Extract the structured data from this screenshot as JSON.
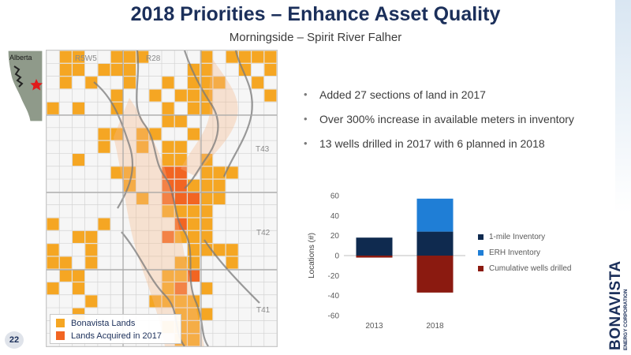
{
  "title": "2018 Priorities – Enhance Asset Quality",
  "subtitle": "Morningside – Spirit River Falher",
  "map": {
    "inset_label": "Alberta",
    "range_labels": [
      "R5W5",
      "R28"
    ],
    "township_labels": [
      "T43",
      "T42",
      "T41"
    ],
    "legend": [
      {
        "label": "Bonavista Lands",
        "color": "#f5a623"
      },
      {
        "label": "Lands Acquired in 2017",
        "color": "#f26522"
      }
    ]
  },
  "bullets": [
    "Added 27 sections of land in 2017",
    "Over 300% increase in available meters in inventory",
    "13 wells drilled in 2017 with 6 planned in 2018"
  ],
  "chart_data": {
    "type": "bar",
    "stacked": true,
    "categories": [
      "2013",
      "2018"
    ],
    "series": [
      {
        "name": "1-mile Inventory",
        "values": [
          18,
          24
        ],
        "color": "#0f2a4f"
      },
      {
        "name": "ERH Inventory",
        "values": [
          0,
          33
        ],
        "color": "#1f7ed6"
      },
      {
        "name": "Cumulative wells drilled",
        "values": [
          -2,
          -37
        ],
        "color": "#8b1a10"
      }
    ],
    "ylabel": "Locations (#)",
    "ylim": [
      -60,
      60
    ],
    "yticks": [
      60,
      40,
      20,
      0,
      -20,
      -40,
      -60
    ],
    "legend_position": "right"
  },
  "page_number": "22",
  "brand": {
    "name": "BONAVISTA",
    "tagline": "ENERGY CORPORATION"
  }
}
